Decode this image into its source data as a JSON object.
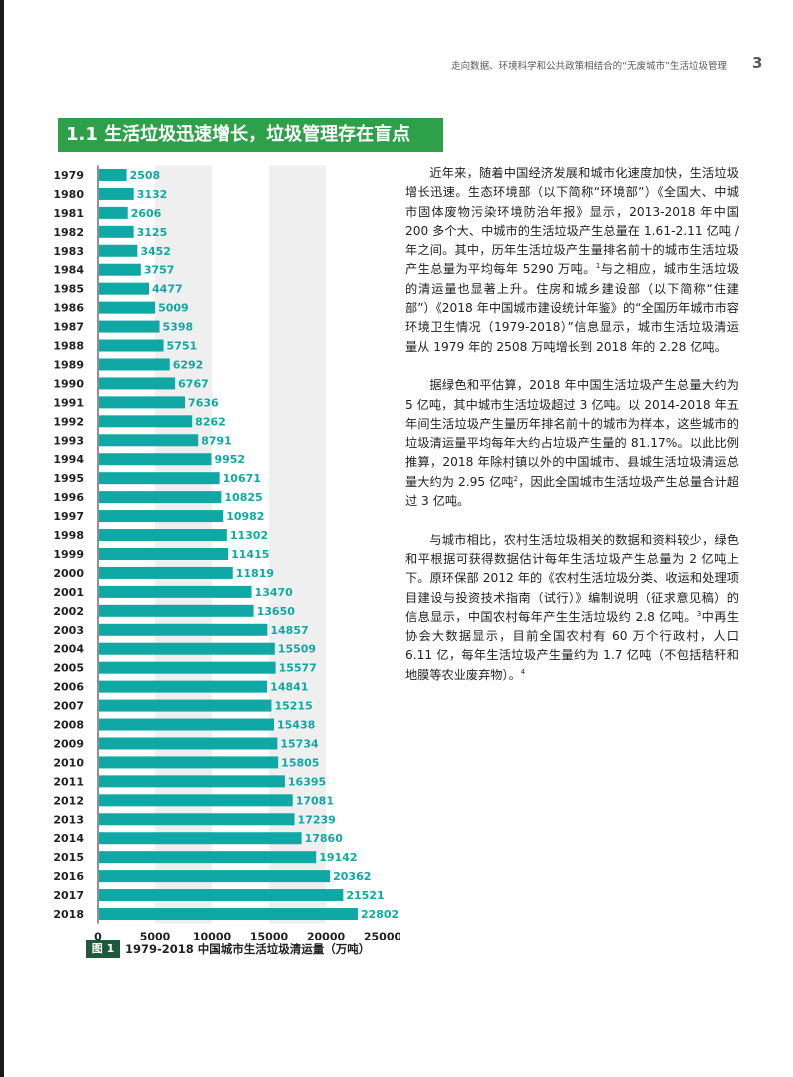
{
  "header": {
    "running_title": "走向数据、环境科学和公共政策相结合的“无废城市”生活垃圾管理",
    "page_number": "3"
  },
  "section": {
    "title": "1.1 生活垃圾迅速增长，垃圾管理存在盲点"
  },
  "figure": {
    "badge": "图 1",
    "caption": "1979-2018 中国城市生活垃圾清运量（万吨）"
  },
  "chart_data": {
    "type": "bar",
    "orientation": "horizontal",
    "categories": [
      "1979",
      "1980",
      "1981",
      "1982",
      "1983",
      "1984",
      "1985",
      "1986",
      "1987",
      "1988",
      "1989",
      "1990",
      "1991",
      "1992",
      "1993",
      "1994",
      "1995",
      "1996",
      "1997",
      "1998",
      "1999",
      "2000",
      "2001",
      "2002",
      "2003",
      "2004",
      "2005",
      "2006",
      "2007",
      "2008",
      "2009",
      "2010",
      "2011",
      "2012",
      "2013",
      "2014",
      "2015",
      "2016",
      "2017",
      "2018"
    ],
    "values": [
      2508,
      3132,
      2606,
      3125,
      3452,
      3757,
      4477,
      5009,
      5398,
      5751,
      6292,
      6767,
      7636,
      8262,
      8791,
      9952,
      10671,
      10825,
      10982,
      11302,
      11415,
      11819,
      13470,
      13650,
      14857,
      15509,
      15577,
      14841,
      15215,
      15438,
      15734,
      15805,
      16395,
      17081,
      17239,
      17860,
      19142,
      20362,
      21521,
      22802
    ],
    "xticks": [
      "0",
      "5000",
      "10000",
      "15000",
      "20000",
      "25000"
    ],
    "xlim": [
      0,
      25000
    ],
    "bar_color": "#0fa8a5",
    "label_color": "#0fa8a5",
    "band_color": "#efefef",
    "data_labels": true
  },
  "body": {
    "p1a": "近年来，随着中国经济发展和城市化速度加快，生活垃圾增长迅速。生态环境部（以下简称“环境部”）《全国大、中城市固体废物污染环境防治年报》显示，2013-2018 年中国 200 多个大、中城市的生活垃圾产生总量在 1.61-2.11 亿吨 / 年之间。其中，历年生活垃圾产生量排名前十的城市生活垃圾产生总量为平均每年 5290 万吨。",
    "fn1": "1",
    "p1b": "与之相应，城市生活垃圾的清运量也显著上升。住房和城乡建设部（以下简称“住建部”）《2018 年中国城市建设统计年鉴》的“全国历年城市市容环境卫生情况（1979-2018）”信息显示，城市生活垃圾清运量从 1979 年的 2508 万吨增长到 2018 年的 2.28 亿吨。",
    "p2a": "据绿色和平估算，2018 年中国生活垃圾产生总量大约为 5 亿吨，其中城市生活垃圾超过 3 亿吨。以 2014-2018 年五年间生活垃圾产生量历年排名前十的城市为样本，这些城市的垃圾清运量平均每年大约占垃圾产生量的 81.17%。以此比例推算，2018 年除村镇以外的中国城市、县城生活垃圾清运总量大约为 2.95 亿吨",
    "fn2": "2",
    "p2b": "，因此全国城市生活垃圾产生总量合计超过 3 亿吨。",
    "p3a": "与城市相比，农村生活垃圾相关的数据和资料较少，绿色和平根据可获得数据估计每年生活垃圾产生总量为 2 亿吨上下。原环保部 2012 年的《农村生活垃圾分类、收运和处理项目建设与投资技术指南（试行）》编制说明（征求意见稿）的信息显示，中国农村每年产生生活垃圾约 2.8 亿吨。",
    "fn3": "3",
    "p3b": "中再生协会大数据显示，目前全国农村有 60 万个行政村，人口 6.11 亿，每年生活垃圾产生量约为 1.7 亿吨（不包括秸秆和地膜等农业废弃物）。",
    "fn4": "4"
  }
}
